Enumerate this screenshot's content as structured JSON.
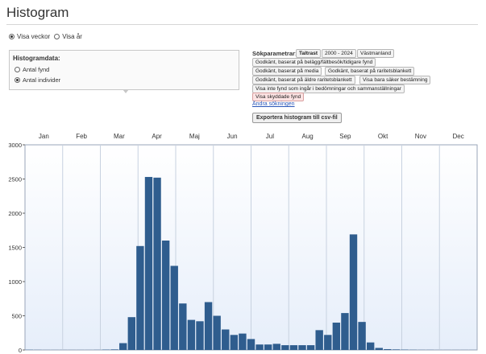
{
  "page": {
    "title": "Histogram"
  },
  "view_options": [
    {
      "label": "Visa veckor",
      "checked": true
    },
    {
      "label": "Visa år",
      "checked": false
    }
  ],
  "histogram_data": {
    "title": "Histogramdata:",
    "options": [
      {
        "label": "Antal fynd",
        "checked": false
      },
      {
        "label": "Antal individer",
        "checked": true
      }
    ]
  },
  "search_params": {
    "label": "Sökparametrar:",
    "chips": [
      "Taltrast",
      "2000 - 2024",
      "Västmanland",
      "Godkänt, baserat på belägg/fältbesök/tidigare fynd",
      "Godkänt, baserat på media",
      "Godkänt, baserat på raritetsblankett",
      "Godkänt, baserat på äldre raritetsblankett",
      "Visa bara säker bestämning",
      "Visa inte fynd som ingår i bedömningar och sammanställningar",
      "Visa skyddade fynd"
    ],
    "change_link": "Ändra sökningen",
    "export_button": "Exportera histogram till csv-fil"
  },
  "colors": {
    "bar": "#2f5d8e",
    "plot_top": "#ffffff",
    "plot_bottom": "#e6eefa",
    "grid": "#c8d2e0",
    "chip_red": "#fde3e3"
  },
  "chart_data": {
    "type": "bar",
    "title": "",
    "xlabel": "",
    "ylabel": "",
    "month_labels": [
      "Jan",
      "Feb",
      "Mar",
      "Apr",
      "Maj",
      "Jun",
      "Jul",
      "Aug",
      "Sep",
      "Okt",
      "Nov",
      "Dec"
    ],
    "ylim": [
      0,
      3000
    ],
    "yticks": [
      0,
      500,
      1000,
      1500,
      2000,
      2500,
      3000
    ],
    "grid": true,
    "x_unit": "week",
    "x": [
      1,
      2,
      3,
      4,
      5,
      6,
      7,
      8,
      9,
      10,
      11,
      12,
      13,
      14,
      15,
      16,
      17,
      18,
      19,
      20,
      21,
      22,
      23,
      24,
      25,
      26,
      27,
      28,
      29,
      30,
      31,
      32,
      33,
      34,
      35,
      36,
      37,
      38,
      39,
      40,
      41,
      42,
      43,
      44,
      45,
      46,
      47,
      48,
      49,
      50,
      51,
      52,
      53
    ],
    "values": [
      3,
      2,
      1,
      1,
      1,
      1,
      1,
      1,
      2,
      5,
      8,
      100,
      480,
      1520,
      2530,
      2520,
      1600,
      1230,
      680,
      440,
      420,
      700,
      500,
      300,
      220,
      240,
      160,
      80,
      80,
      90,
      70,
      70,
      70,
      70,
      290,
      220,
      400,
      540,
      1690,
      410,
      110,
      30,
      12,
      8,
      5,
      3,
      2,
      2,
      1,
      1,
      1,
      1,
      1
    ]
  }
}
